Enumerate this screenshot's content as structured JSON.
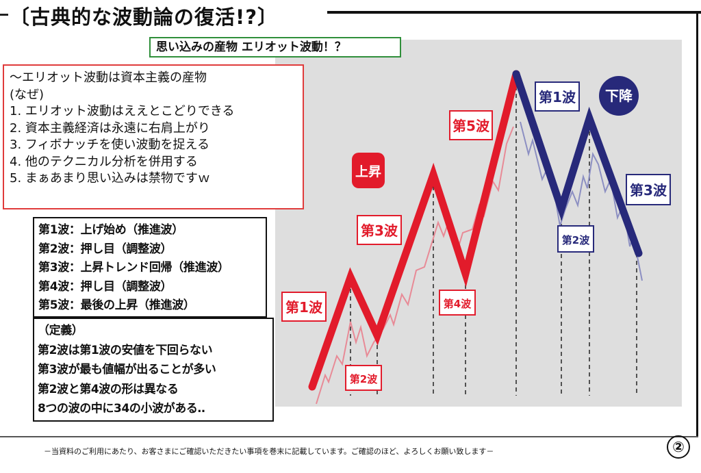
{
  "title": "〔古典的な波動論の復活!?〕",
  "subtitle": "思い込みの産物 エリオット波動！？",
  "reasons": [
    "～エリオット波動は資本主義の産物",
    "(なぜ)",
    "1. エリオット波動はええとこどりできる",
    "2. 資本主義経済は永遠に右肩上がり",
    "3. フィボナッチを使い波動を捉える",
    "4. 他のテクニカル分析を併用する",
    "5. まぁあまり思い込みは禁物ですｗ"
  ],
  "wave_definitions": [
    "第1波：上げ始め（推進波）",
    "第2波：押し目（調整波）",
    "第3波：上昇トレンド回帰（推進波）",
    "第4波：押し目（調整波）",
    "第5波：最後の上昇（推進波）"
  ],
  "rules": [
    "（定義）",
    "第2波は第1波の安値を下回らない",
    "第3波が最も値幅が出ることが多い",
    "第2波と第4波の形は異なる",
    "8つの波の中に34の小波がある‥"
  ],
  "diagram": {
    "rise_label": "上昇",
    "fall_label": "下降",
    "up_waves": [
      "第1波",
      "第2波",
      "第3波",
      "第4波",
      "第5波"
    ],
    "down_waves": [
      "第1波",
      "第2波",
      "第3波"
    ],
    "colors": {
      "up": "#e21b2b",
      "down": "#27297a",
      "sub_up": "#e88a96",
      "sub_down": "#8c8fc2"
    }
  },
  "footer": "－当資料のご利用にあたり、お客さまにご確認いただきたい事項を巻末に記載しています。ご確認のほど、よろしくお願い致します－",
  "page_number": "②"
}
